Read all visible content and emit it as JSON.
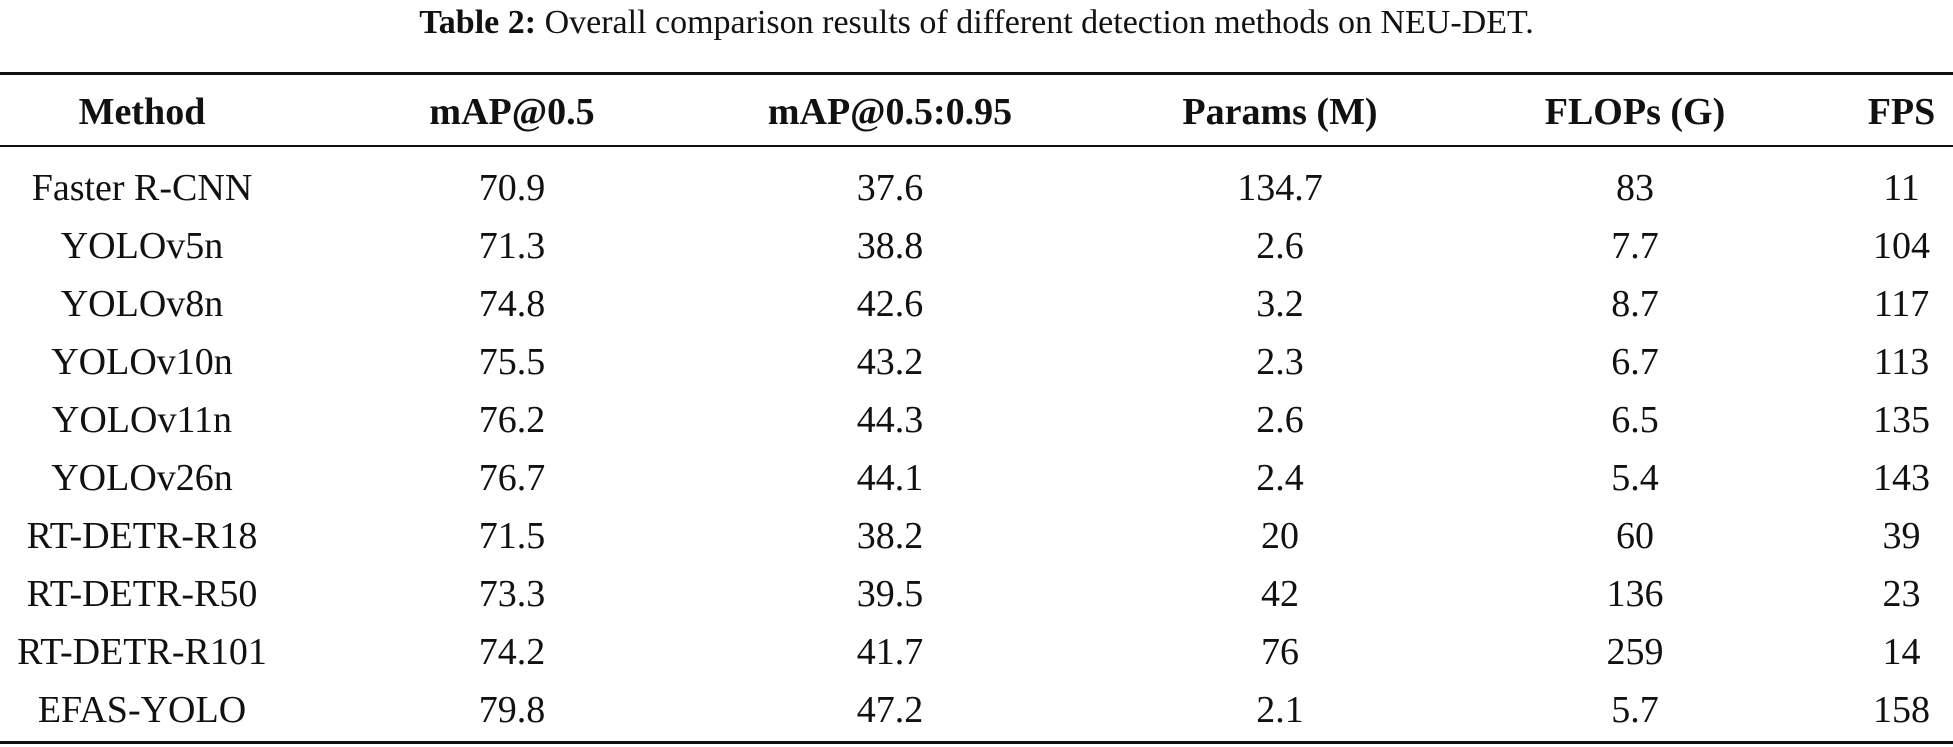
{
  "caption": {
    "label": "Table 2:",
    "text": "Overall comparison results of different detection methods on NEU-DET."
  },
  "table": {
    "headers": [
      "Method",
      "mAP@0.5",
      "mAP@0.5:0.95",
      "Params (M)",
      "FLOPs (G)",
      "FPS"
    ],
    "rows": [
      [
        "Faster R-CNN",
        "70.9",
        "37.6",
        "134.7",
        "83",
        "11"
      ],
      [
        "YOLOv5n",
        "71.3",
        "38.8",
        "2.6",
        "7.7",
        "104"
      ],
      [
        "YOLOv8n",
        "74.8",
        "42.6",
        "3.2",
        "8.7",
        "117"
      ],
      [
        "YOLOv10n",
        "75.5",
        "43.2",
        "2.3",
        "6.7",
        "113"
      ],
      [
        "YOLOv11n",
        "76.2",
        "44.3",
        "2.6",
        "6.5",
        "135"
      ],
      [
        "YOLOv26n",
        "76.7",
        "44.1",
        "2.4",
        "5.4",
        "143"
      ],
      [
        "RT-DETR-R18",
        "71.5",
        "38.2",
        "20",
        "60",
        "39"
      ],
      [
        "RT-DETR-R50",
        "73.3",
        "39.5",
        "42",
        "136",
        "23"
      ],
      [
        "RT-DETR-R101",
        "74.2",
        "41.7",
        "76",
        "259",
        "14"
      ],
      [
        "EFAS-YOLO",
        "79.8",
        "47.2",
        "2.1",
        "5.7",
        "158"
      ]
    ]
  }
}
